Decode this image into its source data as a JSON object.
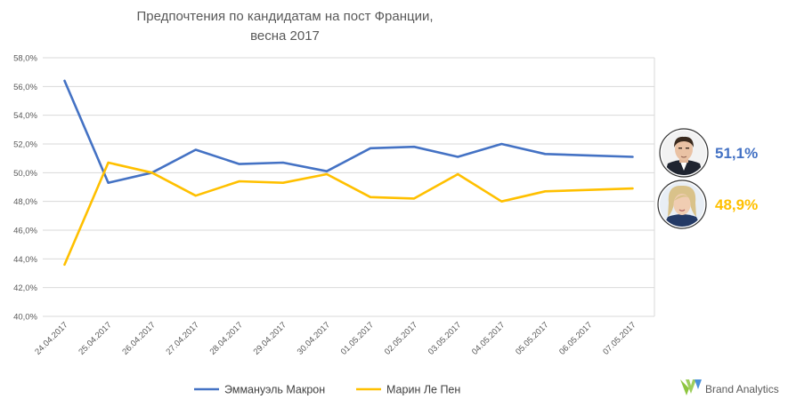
{
  "chart_data": {
    "type": "line",
    "title_lines": [
      "Предпочтения по кандидатам на пост Франции,",
      "весна 2017"
    ],
    "categories": [
      "24.04.2017",
      "25.04.2017",
      "26.04.2017",
      "27.04.2017",
      "28.04.2017",
      "29.04.2017",
      "30.04.2017",
      "01.05.2017",
      "02.05.2017",
      "03.05.2017",
      "04.05.2017",
      "05.05.2017",
      "06.05.2017",
      "07.05.2017"
    ],
    "y_ticks": [
      "40,0%",
      "42,0%",
      "44,0%",
      "46,0%",
      "48,0%",
      "50,0%",
      "52,0%",
      "54,0%",
      "56,0%",
      "58,0%"
    ],
    "ylim": [
      40,
      58
    ],
    "grid": true,
    "legend_position": "bottom",
    "series": [
      {
        "name": "Эммануэль Макрон",
        "color": "#4472c4",
        "values": [
          56.4,
          49.3,
          50.0,
          51.6,
          50.6,
          50.7,
          50.1,
          51.7,
          51.8,
          51.1,
          52.0,
          51.3,
          51.2,
          51.1
        ],
        "final_label": "51,1%",
        "avatar_icon": "macron-portrait-icon"
      },
      {
        "name": "Марин Ле Пен",
        "color": "#ffc000",
        "values": [
          43.6,
          50.7,
          50.0,
          48.4,
          49.4,
          49.3,
          49.9,
          48.3,
          48.2,
          49.9,
          48.0,
          48.7,
          48.8,
          48.9
        ],
        "final_label": "48,9%",
        "avatar_icon": "lepen-portrait-icon"
      }
    ]
  },
  "brand": {
    "text": "Brand Analytics",
    "icon": "brand-analytics-logo-icon",
    "colors": [
      "#8dc63f",
      "#4a90d9"
    ]
  }
}
